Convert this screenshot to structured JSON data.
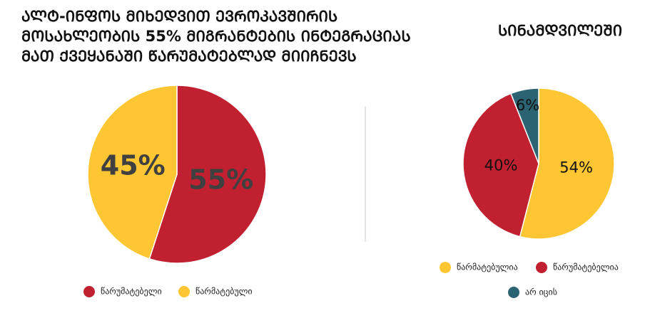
{
  "chart_data": [
    {
      "type": "pie",
      "title": [
        "ᲐᲚᲢ-ᲘᲜᲤᲝᲡ ᲛᲘᲮᲔᲓᲕᲘᲗ ᲔᲕᲠᲝᲙᲐᲕᲨᲘᲠᲘᲡ",
        "ᲛᲝᲡᲐᲮᲚᲔᲝᲑᲘᲡ 55%  ᲛᲘᲒᲠᲐᲜᲢᲔᲑᲘᲡ ᲘᲜᲢᲔᲒᲠᲐᲪᲘᲐᲡ",
        "ᲛᲐᲗ ᲥᲕᲔᲧᲐᲜᲐᲨᲘ ᲬᲐᲠᲣᲛᲐᲢᲔᲑᲚᲐᲓ ᲛᲘᲘᲩᲜᲔᲕᲡ"
      ],
      "categories": [
        "წარუმატებელი",
        "წარმატებული"
      ],
      "values": [
        55,
        45
      ],
      "value_labels": [
        "55%",
        "45%"
      ],
      "colors": [
        "#c0202f",
        "#fdc632"
      ]
    },
    {
      "type": "pie",
      "title": [
        "ᲡᲘᲜᲐᲛᲓᲕᲘᲚᲔᲨᲘ"
      ],
      "categories": [
        "წარმატებულია",
        "წარუმატებელია",
        "არ იცის"
      ],
      "values": [
        54,
        40,
        6
      ],
      "value_labels": [
        "54%",
        "40%",
        "6%"
      ],
      "colors": [
        "#fdc632",
        "#c0202f",
        "#2c6373"
      ]
    }
  ]
}
